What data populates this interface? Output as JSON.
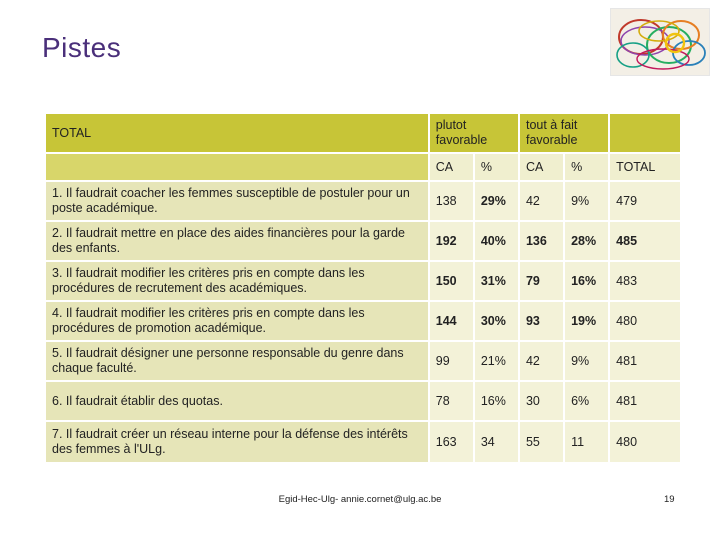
{
  "title": "Pistes",
  "header": {
    "total_label": "TOTAL",
    "group1": "plutot favorable",
    "group2": "tout à fait favorable",
    "sub": [
      "CA",
      "%",
      "CA",
      "%",
      "TOTAL"
    ]
  },
  "rows": [
    {
      "q": "1. Il faudrait coacher les femmes susceptible de postuler pour un poste académique.",
      "ca1": "138",
      "p1": "29%",
      "ca2": "42",
      "p2": "9%",
      "total": "479"
    },
    {
      "q": "2. Il faudrait mettre en place des aides financières pour la garde des enfants.",
      "ca1": "192",
      "p1": "40%",
      "ca2": "136",
      "p2": "28%",
      "total": "485"
    },
    {
      "q": "3. Il faudrait modifier les critères pris en compte dans les procédures de recrutement des académiques.",
      "ca1": "150",
      "p1": "31%",
      "ca2": "79",
      "p2": "16%",
      "total": "483"
    },
    {
      "q": "4. Il faudrait modifier les critères pris en compte dans les procédures de promotion académique.",
      "ca1": "144",
      "p1": "30%",
      "ca2": "93",
      "p2": "19%",
      "total": "480"
    },
    {
      "q": "5. Il faudrait désigner une personne responsable du genre dans chaque faculté.",
      "ca1": "99",
      "p1": "21%",
      "ca2": "42",
      "p2": "9%",
      "total": "481"
    },
    {
      "q": "6. Il faudrait établir des quotas.",
      "ca1": "78",
      "p1": "16%",
      "ca2": "30",
      "p2": "6%",
      "total": "481"
    },
    {
      "q": "7. Il faudrait créer un réseau interne pour la défense des intérêts des femmes à l'ULg.",
      "ca1": "163",
      "p1": "34",
      "ca2": "55",
      "p2": "11",
      "total": "480"
    }
  ],
  "footer": "Egid-Hec-Ulg- annie.cornet@ulg.ac.be",
  "page_number": "19"
}
